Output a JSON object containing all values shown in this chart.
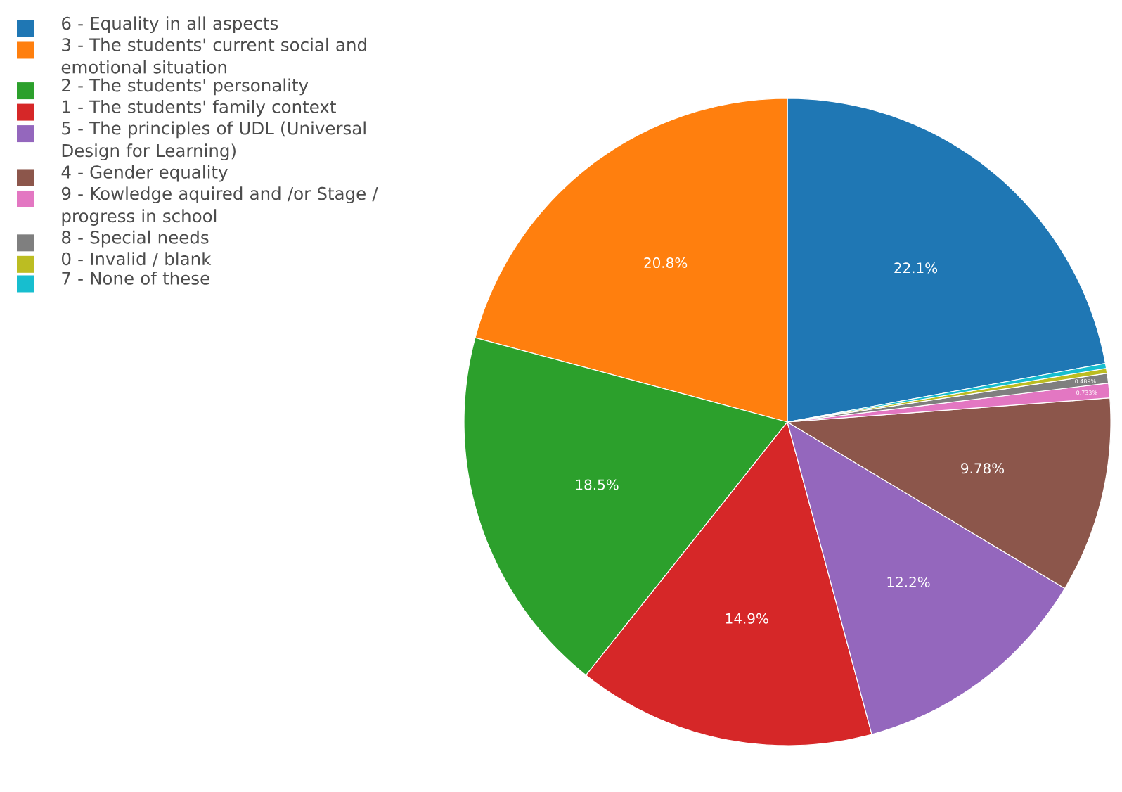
{
  "chart_data": {
    "type": "pie",
    "categories": [
      "6 - Equality in all aspects",
      "3 - The students' current social and emotional situation",
      "2 - The students' personality",
      "1 - The students' family context",
      "5 - The principles of UDL (Universal Design for Learning)",
      "4 - Gender equality",
      "9 - Kowledge aquired and /or Stage / progress in school",
      "8 - Special needs",
      "0 - Invalid / blank",
      "7 - None of these"
    ],
    "values": [
      22.1,
      20.8,
      18.5,
      14.9,
      12.2,
      9.78,
      0.733,
      0.489,
      0.244,
      0.244
    ],
    "colors": [
      "#1f77b4",
      "#ff7f0e",
      "#2ca02c",
      "#d62728",
      "#9467bd",
      "#8c564b",
      "#e377c2",
      "#7f7f7f",
      "#bcbd22",
      "#17becf"
    ],
    "value_labels": [
      "22.1%",
      "20.8%",
      "18.5%",
      "14.9%",
      "12.2%",
      "9.78%",
      "0.733%",
      "0.489%",
      null,
      null
    ],
    "legend": "left"
  }
}
